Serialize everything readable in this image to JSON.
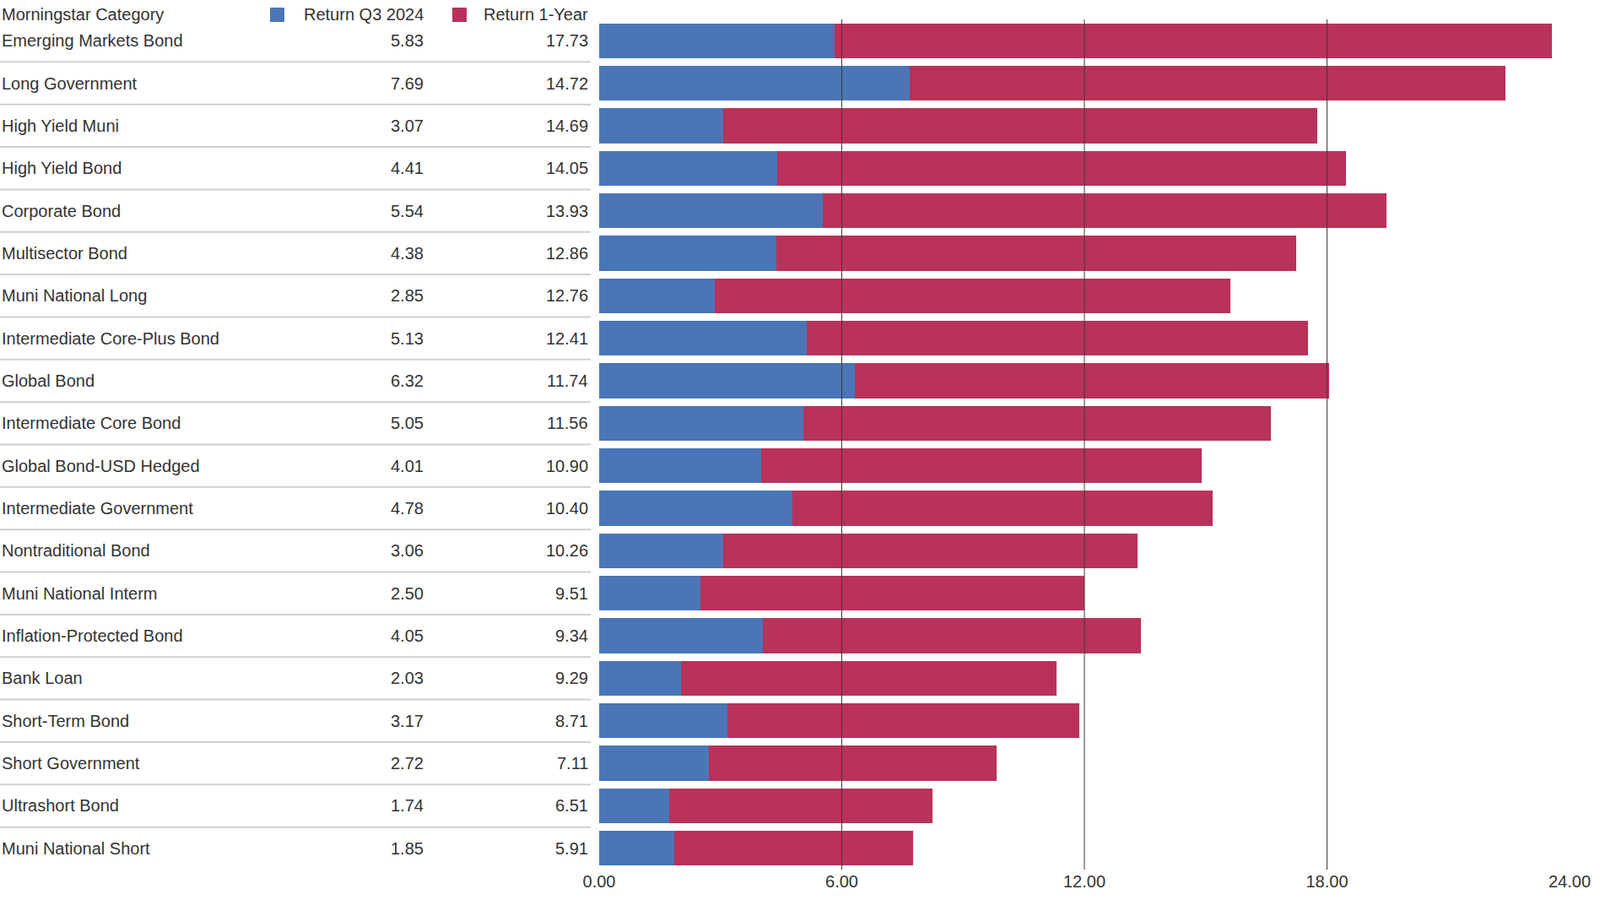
{
  "chart_data": {
    "type": "bar",
    "orientation": "horizontal",
    "stacked": true,
    "data_labels": true,
    "grid": true,
    "ylabel": "Morningstar Category",
    "categories": [
      "Emerging Markets Bond",
      "Long Government",
      "High Yield Muni",
      "High Yield Bond",
      "Corporate Bond",
      "Multisector Bond",
      "Muni National Long",
      "Intermediate Core-Plus Bond",
      "Global Bond",
      "Intermediate Core Bond",
      "Global Bond-USD Hedged",
      "Intermediate Government",
      "Nontraditional Bond",
      "Muni National Interm",
      "Inflation-Protected Bond",
      "Bank Loan",
      "Short-Term Bond",
      "Short Government",
      "Ultrashort Bond",
      "Muni National Short"
    ],
    "series": [
      {
        "name": "Return Q3 2024",
        "color": "#4a76b8",
        "values": [
          5.83,
          7.69,
          3.07,
          4.41,
          5.54,
          4.38,
          2.85,
          5.13,
          6.32,
          5.05,
          4.01,
          4.78,
          3.06,
          2.5,
          4.05,
          2.03,
          3.17,
          2.72,
          1.74,
          1.85
        ],
        "value_labels": [
          "5.83",
          "7.69",
          "3.07",
          "4.41",
          "5.54",
          "4.38",
          "2.85",
          "5.13",
          "6.32",
          "5.05",
          "4.01",
          "4.78",
          "3.06",
          "2.50",
          "4.05",
          "2.03",
          "3.17",
          "2.72",
          "1.74",
          "1.85"
        ]
      },
      {
        "name": "Return 1-Year",
        "color": "#b9325a",
        "values": [
          17.73,
          14.72,
          14.69,
          14.05,
          13.93,
          12.86,
          12.76,
          12.41,
          11.74,
          11.56,
          10.9,
          10.4,
          10.26,
          9.51,
          9.34,
          9.29,
          8.71,
          7.11,
          6.51,
          5.91
        ],
        "value_labels": [
          "17.73",
          "14.72",
          "14.69",
          "14.05",
          "13.93",
          "12.86",
          "12.76",
          "12.41",
          "11.74",
          "11.56",
          "10.90",
          "10.40",
          "10.26",
          "9.51",
          "9.34",
          "9.29",
          "8.71",
          "7.11",
          "6.51",
          "5.91"
        ]
      }
    ],
    "xlim": [
      0,
      24
    ],
    "xticks": [
      {
        "value": 0,
        "label": "0.00"
      },
      {
        "value": 6,
        "label": "6.00"
      },
      {
        "value": 12,
        "label": "12.00"
      },
      {
        "value": 18,
        "label": "18.00"
      },
      {
        "value": 24,
        "label": "24.00"
      }
    ]
  }
}
